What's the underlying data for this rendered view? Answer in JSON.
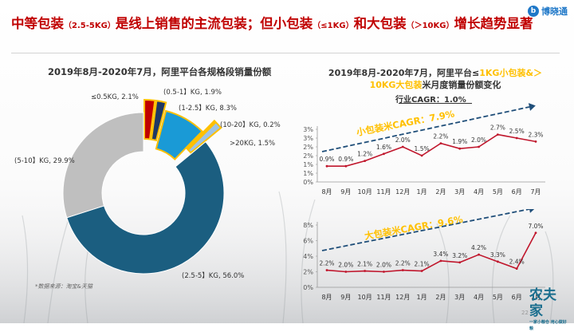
{
  "header": {
    "title_parts": [
      "中等包装",
      "（2.5-5KG）",
      "是线上销售的主流包装；但小包装",
      "（≤1KG）",
      "和大包装",
      "（＞10KG）",
      "增长趋势显著"
    ],
    "brand_name": "博晓通",
    "brand_mark": "b"
  },
  "left": {
    "title": "2019年8月-2020年7月，阿里平台各规格段销量份额"
  },
  "right": {
    "title_part1": "2019年8月-2020年7月，阿里平台≤",
    "title_highlight": "1KG小包装&＞10KG大包装",
    "title_part2": "米月度销量份额变化",
    "industry_cagr": "行业CAGR：1.0%"
  },
  "footer": {
    "source": "*数据来源：淘宝&天猫",
    "page_number": "22",
    "stamp_text": "农夫家",
    "stamp_subtext": "一家小粮仓 用心做好粮"
  },
  "colors": {
    "title_red": "#c00000",
    "navy": "#1f4e79",
    "teal_blue": "#1b5e80",
    "light_blue": "#1a9ad6",
    "gray": "#bfbfbf",
    "line_red": "#c0162c",
    "arrow_blue": "#1f4e79",
    "highlight_yellow": "#ffc000"
  },
  "chart_data": [
    {
      "type": "pie",
      "subtype": "donut",
      "title": "2019年8月-2020年7月，阿里平台各规格段销量份额",
      "slices": [
        {
          "label": "(2.5-5】KG, 56.0%",
          "value": 56.0,
          "color": "#1b5e80"
        },
        {
          "label": "(5-10】KG, 29.9%",
          "value": 29.9,
          "color": "#bfbfbf"
        },
        {
          "label": "≤0.5KG, 2.1%",
          "value": 2.1,
          "color": "#c00000"
        },
        {
          "label": "(0.5-1】KG, 1.9%",
          "value": 1.9,
          "color": "#1f3864"
        },
        {
          "label": "(1-2.5】KG, 8.3%",
          "value": 8.3,
          "color": "#1a9ad6"
        },
        {
          "label": "(10-20】KG, 0.2%",
          "value": 0.2,
          "color": "#2e75b6"
        },
        {
          "label": ">20KG, 1.5%",
          "value": 1.5,
          "color": "#9dc3e6"
        }
      ]
    },
    {
      "type": "line",
      "categories": [
        "8月",
        "9月",
        "10月",
        "11月",
        "12月",
        "1月",
        "2月",
        "3月",
        "4月",
        "5月",
        "6月",
        "7月"
      ],
      "values": [
        0.9,
        0.9,
        1.2,
        1.6,
        2.0,
        1.5,
        2.2,
        1.9,
        2.0,
        2.7,
        2.5,
        2.3
      ],
      "data_labels": [
        "0.9%",
        "0.9%",
        "1.2%",
        "1.6%",
        "2.0%",
        "1.5%",
        "2.2%",
        "1.9%",
        "2.0%",
        "2.7%",
        "2.5%",
        "2.3%"
      ],
      "ylim": [
        0,
        3
      ],
      "yticks": [
        "0%",
        "1%",
        "1%",
        "2%",
        "2%",
        "3%",
        "3%"
      ],
      "ytick_values": [
        0,
        0.5,
        1.0,
        1.5,
        2.0,
        2.5,
        3.0
      ],
      "annotation": "小包装米CAGR：7.9%",
      "trend_arrow": true
    },
    {
      "type": "line",
      "categories": [
        "8月",
        "9月",
        "10月",
        "11月",
        "12月",
        "1月",
        "2月",
        "3月",
        "4月",
        "5月",
        "6月",
        "7月"
      ],
      "values": [
        2.2,
        2.0,
        2.1,
        2.0,
        2.2,
        2.1,
        3.4,
        3.2,
        4.2,
        3.3,
        2.4,
        7.0
      ],
      "data_labels": [
        "2.2%",
        "2.0%",
        "2.1%",
        "2.0%",
        "2.2%",
        "2.1%",
        "3.4%",
        "3.2%",
        "4.2%",
        "3.3%",
        "2.4%",
        "7.0%"
      ],
      "ylim": [
        0,
        8
      ],
      "yticks": [
        "0%",
        "2%",
        "4%",
        "6%",
        "8%"
      ],
      "ytick_values": [
        0,
        2,
        4,
        6,
        8
      ],
      "annotation": "大包装米CAGR：9.6%",
      "trend_arrow": true
    }
  ]
}
